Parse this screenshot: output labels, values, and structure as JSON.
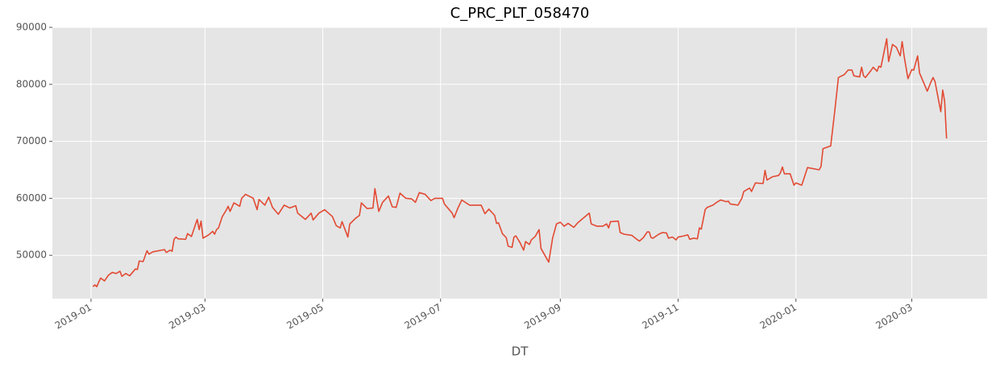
{
  "chart_data": {
    "type": "line",
    "title": "C_PRC_PLT_058470",
    "x_label": "DT",
    "color": "#e24a33",
    "grid": true,
    "x": [
      1,
      2,
      3,
      4,
      5,
      7,
      9,
      11,
      13,
      15,
      16,
      18,
      20,
      23,
      24,
      25,
      27,
      29,
      30,
      32,
      38,
      39,
      41,
      42,
      43,
      44,
      45,
      49,
      50,
      52,
      54,
      55,
      56,
      57,
      58,
      61,
      63,
      64,
      65,
      66,
      68,
      70,
      71,
      72,
      74,
      77,
      78,
      80,
      84,
      86,
      87,
      90,
      92,
      94,
      97,
      100,
      103,
      106,
      107,
      111,
      114,
      115,
      118,
      121,
      125,
      127,
      129,
      130,
      133,
      134,
      137,
      139,
      140,
      143,
      146,
      147,
      149,
      151,
      154,
      156,
      158,
      160,
      163,
      166,
      168,
      170,
      173,
      176,
      178,
      182,
      183,
      187,
      188,
      190,
      192,
      196,
      199,
      202,
      204,
      206,
      209,
      210,
      211,
      213,
      215,
      216,
      218,
      219,
      220,
      222,
      224,
      225,
      227,
      228,
      230,
      232,
      233,
      237,
      239,
      241,
      243,
      245,
      247,
      250,
      252,
      258,
      259,
      262,
      265,
      267,
      268,
      269,
      273,
      274,
      276,
      280,
      283,
      284,
      286,
      288,
      289,
      290,
      291,
      294,
      296,
      298,
      299,
      301,
      303,
      304,
      307,
      309,
      310,
      312,
      314,
      315,
      316,
      318,
      319,
      322,
      324,
      326,
      329,
      330,
      331,
      333,
      335,
      337,
      338,
      341,
      342,
      344,
      348,
      349,
      350,
      353,
      356,
      357,
      358,
      359,
      362,
      364,
      365,
      368,
      371,
      377,
      378,
      379,
      383,
      385,
      387,
      390,
      392,
      394,
      395,
      398,
      399,
      400,
      401,
      404,
      405,
      407,
      408,
      409,
      412,
      413,
      414,
      415,
      417,
      419,
      420,
      421,
      423,
      425,
      426,
      428,
      429,
      433,
      435,
      436,
      437,
      440,
      441,
      442,
      443
    ],
    "values": [
      44500,
      44800,
      44500,
      45300,
      46000,
      45500,
      46500,
      47000,
      46800,
      47200,
      46300,
      46800,
      46400,
      47600,
      47500,
      49000,
      48900,
      50800,
      50200,
      50600,
      51000,
      50500,
      50900,
      50700,
      52800,
      53200,
      52900,
      52800,
      53800,
      53300,
      55300,
      56300,
      54500,
      56000,
      53000,
      53600,
      54200,
      53700,
      54500,
      54800,
      56800,
      57900,
      58600,
      57700,
      59200,
      58600,
      60000,
      60700,
      60000,
      58000,
      59800,
      58800,
      60200,
      58400,
      57200,
      58800,
      58300,
      58700,
      57400,
      56300,
      57400,
      56200,
      57400,
      58000,
      56800,
      55200,
      54800,
      55900,
      53200,
      55500,
      56500,
      57000,
      59200,
      58200,
      58300,
      61700,
      57700,
      59300,
      60400,
      58500,
      58400,
      60900,
      60000,
      59900,
      59300,
      61000,
      60700,
      59600,
      60000,
      60000,
      59000,
      57400,
      56600,
      58300,
      59700,
      58800,
      58800,
      58800,
      57300,
      58100,
      57000,
      55600,
      55700,
      53800,
      53100,
      51600,
      51400,
      53200,
      53400,
      52300,
      50900,
      52400,
      51900,
      52700,
      53300,
      54500,
      51200,
      48800,
      53000,
      55500,
      55800,
      55100,
      55600,
      54900,
      55700,
      57400,
      55500,
      55100,
      55100,
      55500,
      54800,
      55900,
      56000,
      54000,
      53700,
      53500,
      52700,
      52500,
      53100,
      54100,
      54100,
      53100,
      53000,
      53700,
      54000,
      53900,
      53000,
      53200,
      52700,
      53200,
      53400,
      53600,
      52800,
      53000,
      52900,
      54800,
      54600,
      58000,
      58400,
      58800,
      59300,
      59700,
      59400,
      59500,
      59000,
      58900,
      58800,
      60000,
      61200,
      61800,
      61200,
      62700,
      62600,
      64900,
      63200,
      63800,
      64000,
      64500,
      65500,
      64300,
      64300,
      62300,
      62700,
      62300,
      65400,
      65000,
      65600,
      68700,
      69200,
      75000,
      81200,
      81700,
      82500,
      82500,
      81500,
      81300,
      83000,
      81500,
      81200,
      82500,
      83000,
      82300,
      83200,
      83000,
      88000,
      84000,
      85500,
      87000,
      86500,
      85000,
      87500,
      85000,
      81000,
      82600,
      82500,
      85000,
      82000,
      78800,
      80500,
      81200,
      80500,
      75200,
      79000,
      77000,
      70500
    ],
    "xlim": [
      -20,
      464
    ],
    "xticks": [
      {
        "value": 0,
        "label": "2019-01"
      },
      {
        "value": 59,
        "label": "2019-03"
      },
      {
        "value": 120,
        "label": "2019-05"
      },
      {
        "value": 181,
        "label": "2019-07"
      },
      {
        "value": 243,
        "label": "2019-09"
      },
      {
        "value": 304,
        "label": "2019-11"
      },
      {
        "value": 365,
        "label": "2020-01"
      },
      {
        "value": 425,
        "label": "2020-03"
      }
    ],
    "ylim": [
      42400,
      90000
    ],
    "yticks": [
      50000,
      60000,
      70000,
      80000,
      90000
    ]
  }
}
